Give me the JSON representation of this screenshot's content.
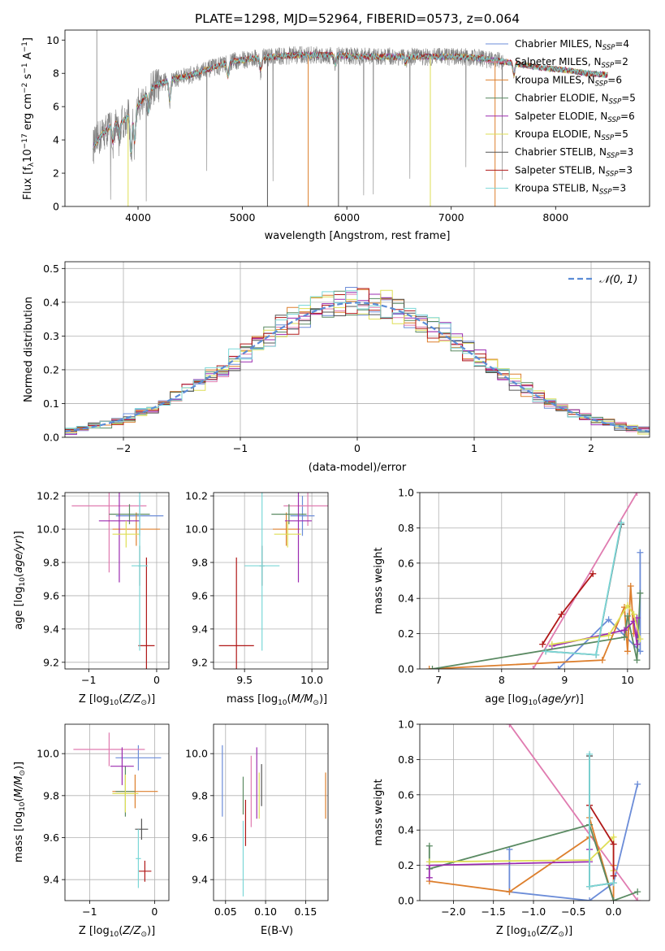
{
  "colors": {
    "Chabrier MILES": "#6b8cd8",
    "Salpeter MILES": "#e07bb0",
    "Kroupa MILES": "#dd7f2d",
    "Chabrier ELODIE": "#5a8a62",
    "Salpeter ELODIE": "#9b2bb0",
    "Kroupa ELODIE": "#dede55",
    "Chabrier STELIB": "#555555",
    "Salpeter STELIB": "#b01818",
    "Kroupa STELIB": "#7bd7d7",
    "model_normal": "#5b8cd6",
    "spectrum_data": "#808080"
  },
  "chart_data": [
    {
      "id": "spectrum",
      "type": "line",
      "title": "PLATE=1298, MJD=52964, FIBERID=0573, z=0.064",
      "xlabel": "wavelength [Angstrom, rest frame]",
      "ylabel": "Flux [f_λ 10^-17 erg cm^-2 s^-1 A^-1]",
      "xlim": [
        3300,
        8900
      ],
      "ylim": [
        0,
        10.6
      ],
      "xticks": [
        4000,
        5000,
        6000,
        7000,
        8000
      ],
      "yticks": [
        0,
        2,
        4,
        6,
        8,
        10
      ],
      "grid": false,
      "legend_position": "top-right",
      "continuum": {
        "x": [
          3570,
          3650,
          3750,
          3850,
          3950,
          4050,
          4150,
          4300,
          4500,
          4700,
          4900,
          5100,
          5300,
          5500,
          5700,
          5900,
          6100,
          6300,
          6500,
          6700,
          6900,
          7100,
          7300,
          7500,
          7700,
          7900,
          8100,
          8300,
          8500
        ],
        "y": [
          3.6,
          4.3,
          4.9,
          5.1,
          5.6,
          6.5,
          7.2,
          7.6,
          7.9,
          8.3,
          8.7,
          8.9,
          9.0,
          9.1,
          9.1,
          9.1,
          9.0,
          9.0,
          9.0,
          9.0,
          9.0,
          9.0,
          8.9,
          8.7,
          8.5,
          8.3,
          8.2,
          8.0,
          7.9
        ]
      },
      "series": [
        {
          "name": "Chabrier MILES, N_SSP=4",
          "label_main": "Chabrier MILES, N",
          "label_sub": "SSP",
          "label_tail": "=4"
        },
        {
          "name": "Salpeter MILES, N_SSP=2",
          "label_main": "Salpeter MILES, N",
          "label_sub": "SSP",
          "label_tail": "=2"
        },
        {
          "name": "Kroupa MILES, N_SSP=6",
          "label_main": "Kroupa MILES, N",
          "label_sub": "SSP",
          "label_tail": "=6"
        },
        {
          "name": "Chabrier ELODIE, N_SSP=5",
          "label_main": "Chabrier ELODIE, N",
          "label_sub": "SSP",
          "label_tail": "=5"
        },
        {
          "name": "Salpeter ELODIE, N_SSP=6",
          "label_main": "Salpeter ELODIE, N",
          "label_sub": "SSP",
          "label_tail": "=6"
        },
        {
          "name": "Kroupa ELODIE, N_SSP=5",
          "label_main": "Kroupa ELODIE, N",
          "label_sub": "SSP",
          "label_tail": "=5"
        },
        {
          "name": "Chabrier STELIB, N_SSP=3",
          "label_main": "Chabrier STELIB, N",
          "label_sub": "SSP",
          "label_tail": "=3"
        },
        {
          "name": "Salpeter STELIB, N_SSP=3",
          "label_main": "Salpeter STELIB, N",
          "label_sub": "SSP",
          "label_tail": "=3"
        },
        {
          "name": "Kroupa STELIB, N_SSP=3",
          "label_main": "Kroupa STELIB, N",
          "label_sub": "SSP",
          "label_tail": "=3"
        }
      ]
    },
    {
      "id": "residuals",
      "type": "step",
      "xlabel": "(data-model)/error",
      "ylabel": "Normed distribution",
      "xlim": [
        -2.5,
        2.5
      ],
      "ylim": [
        0,
        0.52
      ],
      "xticks": [
        -2,
        -1,
        0,
        1,
        2
      ],
      "yticks": [
        0.0,
        0.1,
        0.2,
        0.3,
        0.4,
        0.5
      ],
      "grid": true,
      "legend_position": "top-right",
      "legend_label": "𝒩(0, 1)",
      "bin_width": 0.1
    },
    {
      "id": "age_vs_Z",
      "type": "errorbar",
      "xlabel": "Z [log10(Z/Z☉)]",
      "ylabel": "age [log10(age/yr)]",
      "xlim": [
        -1.35,
        0.18
      ],
      "ylim": [
        9.16,
        10.22
      ],
      "xticks": [
        -1,
        0
      ],
      "yticks": [
        9.2,
        9.4,
        9.6,
        9.8,
        10.0,
        10.2
      ],
      "grid": true,
      "points": [
        {
          "model": "Chabrier MILES",
          "x": -0.25,
          "xerr": 0.35,
          "y": 10.08,
          "yerr": 0.12
        },
        {
          "model": "Salpeter MILES",
          "x": -0.7,
          "xerr": 0.55,
          "y": 10.14,
          "yerr": 0.4
        },
        {
          "model": "Kroupa MILES",
          "x": -0.3,
          "xerr": 0.35,
          "y": 10.0,
          "yerr": 0.1
        },
        {
          "model": "Chabrier ELODIE",
          "x": -0.4,
          "xerr": 0.3,
          "y": 10.09,
          "yerr": 0.06
        },
        {
          "model": "Salpeter ELODIE",
          "x": -0.55,
          "xerr": 0.3,
          "y": 10.05,
          "yerr": 0.37
        },
        {
          "model": "Kroupa ELODIE",
          "x": -0.45,
          "xerr": 0.2,
          "y": 9.97,
          "yerr": 0.08
        },
        {
          "model": "Chabrier STELIB",
          "x": -0.25,
          "xerr": 0.02,
          "y": 9.78,
          "yerr": 0.12
        },
        {
          "model": "Salpeter STELIB",
          "x": -0.15,
          "xerr": 0.12,
          "y": 9.3,
          "yerr": 0.53
        },
        {
          "model": "Kroupa STELIB",
          "x": -0.25,
          "xerr": 0.12,
          "y": 9.78,
          "yerr": 0.51
        }
      ]
    },
    {
      "id": "age_vs_mass",
      "type": "errorbar",
      "xlabel": "mass [log10(M/M☉)]",
      "ylabel": "",
      "xlim": [
        9.27,
        10.12
      ],
      "ylim": [
        9.16,
        10.22
      ],
      "xticks": [
        9.5,
        10.0
      ],
      "yticks": [
        9.2,
        9.4,
        9.6,
        9.8,
        10.0,
        10.2
      ],
      "grid": true,
      "points": [
        {
          "model": "Chabrier MILES",
          "x": 9.93,
          "xerr": 0.09,
          "y": 10.08,
          "yerr": 0.12
        },
        {
          "model": "Salpeter MILES",
          "x": 9.97,
          "xerr": 0.18,
          "y": 10.14,
          "yerr": 0.12
        },
        {
          "model": "Kroupa MILES",
          "x": 9.81,
          "xerr": 0.1,
          "y": 10.0,
          "yerr": 0.1
        },
        {
          "model": "Chabrier ELODIE",
          "x": 9.83,
          "xerr": 0.13,
          "y": 10.09,
          "yerr": 0.06
        },
        {
          "model": "Salpeter ELODIE",
          "x": 9.9,
          "xerr": 0.1,
          "y": 10.05,
          "yerr": 0.37
        },
        {
          "model": "Kroupa ELODIE",
          "x": 9.82,
          "xerr": 0.1,
          "y": 9.97,
          "yerr": 0.08
        },
        {
          "model": "Chabrier STELIB",
          "x": 9.63,
          "xerr": 0.02,
          "y": 9.78,
          "yerr": 0.12
        },
        {
          "model": "Salpeter STELIB",
          "x": 9.44,
          "xerr": 0.13,
          "y": 9.3,
          "yerr": 0.53
        },
        {
          "model": "Kroupa STELIB",
          "x": 9.63,
          "xerr": 0.13,
          "y": 9.78,
          "yerr": 0.51
        }
      ]
    },
    {
      "id": "weight_vs_age",
      "type": "line",
      "xlabel": "age [log10(age/yr)]",
      "ylabel": "mass weight",
      "xlim": [
        6.7,
        10.35
      ],
      "ylim": [
        0,
        1.0
      ],
      "xticks": [
        7,
        8,
        9,
        10
      ],
      "yticks": [
        0.0,
        0.2,
        0.4,
        0.6,
        0.8,
        1.0
      ],
      "grid": true,
      "series": [
        {
          "model": "Chabrier MILES",
          "x": [
            8.9,
            9.7,
            10.2,
            10.2
          ],
          "y": [
            0.0,
            0.28,
            0.1,
            0.66
          ]
        },
        {
          "model": "Salpeter MILES",
          "x": [
            8.5,
            10.15
          ],
          "y": [
            0.0,
            1.0
          ]
        },
        {
          "model": "Kroupa MILES",
          "x": [
            6.85,
            9.6,
            9.95,
            10.0,
            10.05,
            10.1
          ],
          "y": [
            0.0,
            0.05,
            0.35,
            0.1,
            0.47,
            0.2
          ]
        },
        {
          "model": "Chabrier ELODIE",
          "x": [
            6.9,
            9.95,
            10.0,
            10.15,
            10.2
          ],
          "y": [
            0.0,
            0.18,
            0.3,
            0.05,
            0.43
          ]
        },
        {
          "model": "Salpeter ELODIE",
          "x": [
            8.8,
            9.95,
            10.1,
            10.15,
            10.15
          ],
          "y": [
            0.13,
            0.22,
            0.27,
            0.14,
            0.29
          ]
        },
        {
          "model": "Kroupa ELODIE",
          "x": [
            8.8,
            9.7,
            10.0,
            10.1,
            10.2
          ],
          "y": [
            0.14,
            0.19,
            0.36,
            0.31,
            0.17
          ]
        },
        {
          "model": "Chabrier STELIB",
          "x": [
            8.7,
            9.5,
            9.9
          ],
          "y": [
            0.1,
            0.08,
            0.82
          ]
        },
        {
          "model": "Salpeter STELIB",
          "x": [
            8.65,
            8.95,
            9.45
          ],
          "y": [
            0.14,
            0.31,
            0.54
          ]
        },
        {
          "model": "Kroupa STELIB",
          "x": [
            8.7,
            9.5,
            9.9
          ],
          "y": [
            0.1,
            0.08,
            0.83
          ]
        }
      ]
    },
    {
      "id": "mass_vs_Z",
      "type": "errorbar",
      "xlabel": "Z [log10(Z/Z☉)]",
      "ylabel": "mass [log10(M/M☉)]",
      "xlim": [
        -1.38,
        0.22
      ],
      "ylim": [
        9.3,
        10.14
      ],
      "xticks": [
        -1,
        0
      ],
      "yticks": [
        9.4,
        9.6,
        9.8,
        10.0
      ],
      "grid": true,
      "points": [
        {
          "model": "Chabrier MILES",
          "x": -0.25,
          "xerr": 0.35,
          "y": 9.98,
          "yerr": 0.06
        },
        {
          "model": "Salpeter MILES",
          "x": -0.7,
          "xerr": 0.55,
          "y": 10.02,
          "yerr": 0.08
        },
        {
          "model": "Kroupa MILES",
          "x": -0.3,
          "xerr": 0.35,
          "y": 9.82,
          "yerr": 0.08
        },
        {
          "model": "Chabrier ELODIE",
          "x": -0.45,
          "xerr": 0.15,
          "y": 9.82,
          "yerr": 0.12
        },
        {
          "model": "Salpeter ELODIE",
          "x": -0.5,
          "xerr": 0.18,
          "y": 9.94,
          "yerr": 0.09
        },
        {
          "model": "Kroupa ELODIE",
          "x": -0.45,
          "xerr": 0.2,
          "y": 9.81,
          "yerr": 0.09
        },
        {
          "model": "Chabrier STELIB",
          "x": -0.2,
          "xerr": 0.1,
          "y": 9.64,
          "yerr": 0.05
        },
        {
          "model": "Salpeter STELIB",
          "x": -0.15,
          "xerr": 0.1,
          "y": 9.44,
          "yerr": 0.05
        },
        {
          "model": "Kroupa STELIB",
          "x": -0.25,
          "xerr": 0.04,
          "y": 9.5,
          "yerr": 0.14
        }
      ]
    },
    {
      "id": "mass_vs_ebv",
      "type": "errorbar",
      "xlabel": "E(B-V)",
      "ylabel": "",
      "xlim": [
        0.035,
        0.178
      ],
      "ylim": [
        9.3,
        10.14
      ],
      "xticks": [
        0.05,
        0.1,
        0.15
      ],
      "yticks": [
        9.4,
        9.6,
        9.8,
        10.0
      ],
      "grid": true,
      "points": [
        {
          "model": "Chabrier MILES",
          "x": 0.046,
          "xerr": 0.0,
          "y": 9.87,
          "yerr": 0.17
        },
        {
          "model": "Salpeter MILES",
          "x": 0.082,
          "xerr": 0.0,
          "y": 9.82,
          "yerr": 0.17
        },
        {
          "model": "Kroupa MILES",
          "x": 0.175,
          "xerr": 0.0,
          "y": 9.8,
          "yerr": 0.11
        },
        {
          "model": "Chabrier ELODIE",
          "x": 0.072,
          "xerr": 0.0,
          "y": 9.8,
          "yerr": 0.09
        },
        {
          "model": "Salpeter ELODIE",
          "x": 0.089,
          "xerr": 0.0,
          "y": 9.86,
          "yerr": 0.17
        },
        {
          "model": "Kroupa ELODIE",
          "x": 0.092,
          "xerr": 0.0,
          "y": 9.8,
          "yerr": 0.11
        },
        {
          "model": "Chabrier STELIB",
          "x": 0.095,
          "xerr": 0.0,
          "y": 9.85,
          "yerr": 0.1
        },
        {
          "model": "Salpeter STELIB",
          "x": 0.075,
          "xerr": 0.0,
          "y": 9.67,
          "yerr": 0.11
        },
        {
          "model": "Kroupa STELIB",
          "x": 0.072,
          "xerr": 0.0,
          "y": 9.5,
          "yerr": 0.18
        }
      ]
    },
    {
      "id": "weight_vs_Z",
      "type": "line",
      "xlabel": "Z [log10(Z/Z☉)]",
      "ylabel": "mass weight",
      "xlim": [
        -2.42,
        0.45
      ],
      "ylim": [
        0,
        1.0
      ],
      "xticks": [
        -2.0,
        -1.5,
        -1.0,
        -0.5,
        0.0
      ],
      "yticks": [
        0.0,
        0.2,
        0.4,
        0.6,
        0.8,
        1.0
      ],
      "grid": true,
      "series": [
        {
          "model": "Chabrier MILES",
          "x": [
            -1.3,
            -1.3,
            -0.3,
            0.0,
            0.3
          ],
          "y": [
            0.29,
            0.05,
            0.0,
            0.1,
            0.66
          ]
        },
        {
          "model": "Salpeter MILES",
          "x": [
            -1.3,
            0.3
          ],
          "y": [
            1.0,
            0.0
          ]
        },
        {
          "model": "Kroupa MILES",
          "x": [
            -2.3,
            -1.3,
            -0.3,
            -0.3,
            0.0,
            0.0
          ],
          "y": [
            0.11,
            0.05,
            0.36,
            0.47,
            0.0,
            0.2
          ]
        },
        {
          "model": "Chabrier ELODIE",
          "x": [
            -2.3,
            -2.3,
            -0.3,
            0.0,
            0.3
          ],
          "y": [
            0.31,
            0.18,
            0.43,
            0.0,
            0.05
          ]
        },
        {
          "model": "Salpeter ELODIE",
          "x": [
            -2.3,
            -2.3,
            -0.3,
            -0.3
          ],
          "y": [
            0.13,
            0.2,
            0.22,
            0.29
          ]
        },
        {
          "model": "Kroupa ELODIE",
          "x": [
            -2.3,
            -0.3,
            0.0,
            0.0
          ],
          "y": [
            0.22,
            0.23,
            0.36,
            0.17
          ]
        },
        {
          "model": "Chabrier STELIB",
          "x": [
            -0.3,
            -0.3,
            0.0
          ],
          "y": [
            0.82,
            0.08,
            0.1
          ]
        },
        {
          "model": "Salpeter STELIB",
          "x": [
            -0.3,
            0.0,
            0.0
          ],
          "y": [
            0.54,
            0.32,
            0.14
          ]
        },
        {
          "model": "Kroupa STELIB",
          "x": [
            -0.3,
            -0.3,
            0.0
          ],
          "y": [
            0.83,
            0.08,
            0.1
          ]
        }
      ]
    }
  ]
}
